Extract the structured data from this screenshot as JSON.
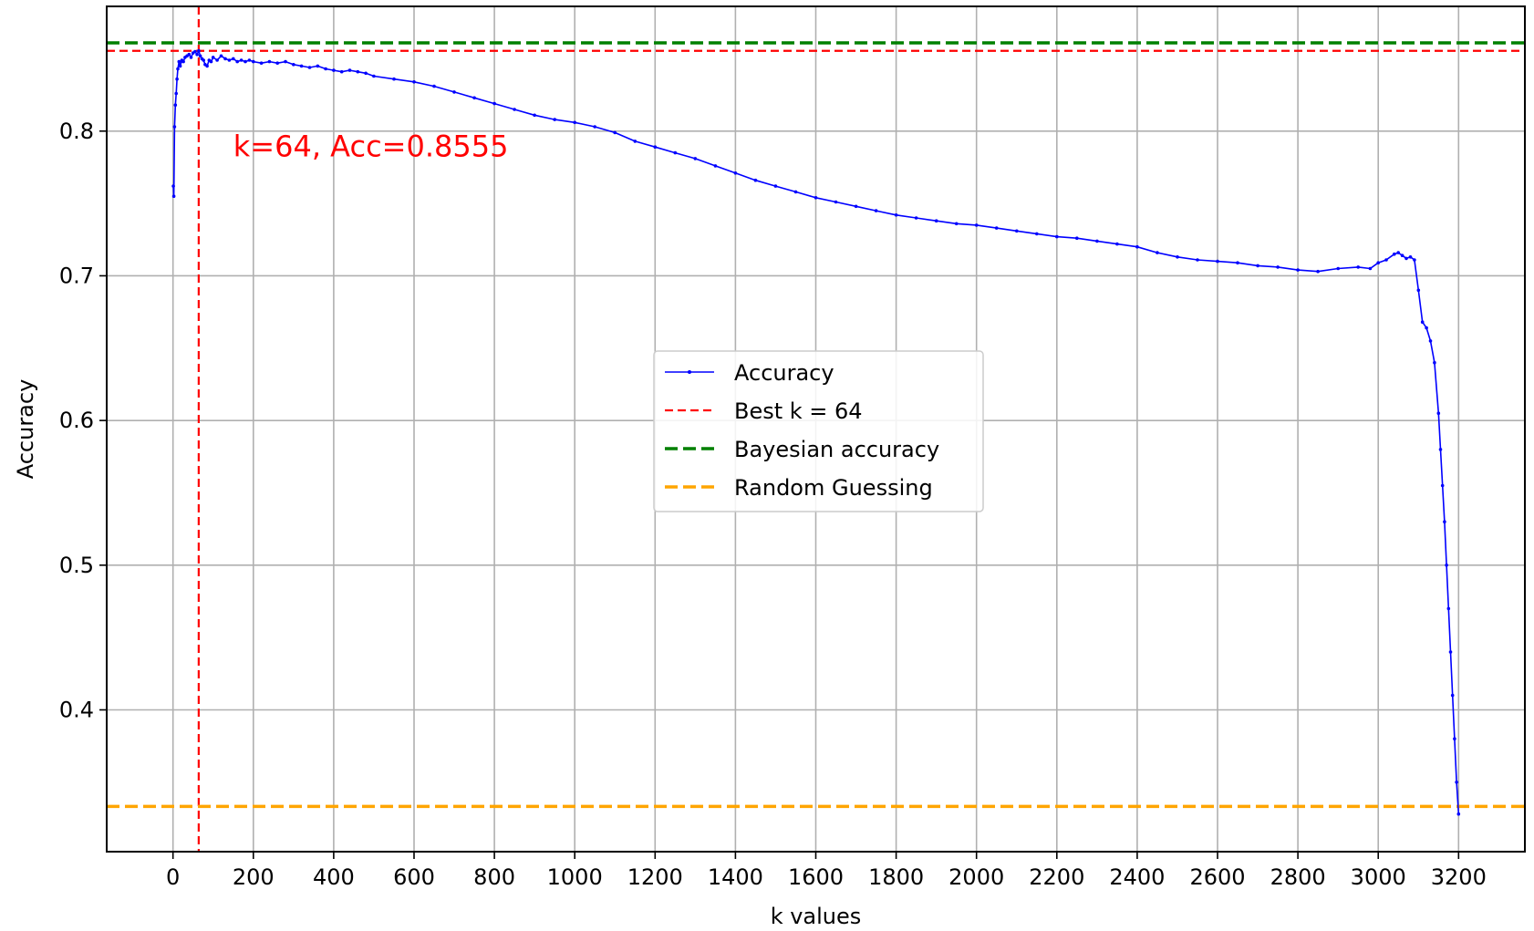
{
  "chart_data": {
    "type": "line",
    "title": "",
    "xlabel": "k values",
    "ylabel": "Accuracy",
    "xlim": [
      -165,
      3365
    ],
    "ylim": [
      0.302,
      0.8862
    ],
    "xticks": [
      0,
      200,
      400,
      600,
      800,
      1000,
      1200,
      1400,
      1600,
      1800,
      2000,
      2200,
      2400,
      2600,
      2800,
      3000,
      3200
    ],
    "yticks": [
      0.4,
      0.5,
      0.6,
      0.7,
      0.8
    ],
    "ytick_labels": [
      "0.4",
      "0.5",
      "0.6",
      "0.7",
      "0.8"
    ],
    "grid": true,
    "legend_position": "center",
    "series": [
      {
        "name": "Accuracy",
        "color": "#0000ff",
        "marker": "dot",
        "x": [
          1,
          2,
          4,
          6,
          8,
          10,
          12,
          15,
          18,
          22,
          26,
          30,
          35,
          40,
          45,
          50,
          55,
          60,
          64,
          68,
          72,
          76,
          80,
          85,
          90,
          95,
          100,
          110,
          120,
          130,
          140,
          150,
          160,
          170,
          180,
          190,
          200,
          220,
          240,
          260,
          280,
          300,
          320,
          340,
          360,
          380,
          400,
          420,
          440,
          460,
          480,
          500,
          550,
          600,
          650,
          700,
          750,
          800,
          850,
          900,
          950,
          1000,
          1050,
          1100,
          1150,
          1200,
          1250,
          1300,
          1350,
          1400,
          1450,
          1500,
          1550,
          1600,
          1650,
          1700,
          1750,
          1800,
          1850,
          1900,
          1950,
          2000,
          2050,
          2100,
          2150,
          2200,
          2250,
          2300,
          2350,
          2400,
          2450,
          2500,
          2550,
          2600,
          2650,
          2700,
          2750,
          2800,
          2850,
          2900,
          2950,
          2980,
          3000,
          3020,
          3040,
          3050,
          3060,
          3070,
          3080,
          3090,
          3100,
          3110,
          3120,
          3130,
          3140,
          3150,
          3155,
          3160,
          3165,
          3170,
          3175,
          3180,
          3185,
          3190,
          3195,
          3200
        ],
        "y": [
          0.762,
          0.755,
          0.803,
          0.818,
          0.826,
          0.836,
          0.843,
          0.848,
          0.845,
          0.849,
          0.848,
          0.851,
          0.852,
          0.853,
          0.851,
          0.854,
          0.855,
          0.853,
          0.8555,
          0.852,
          0.85,
          0.849,
          0.846,
          0.845,
          0.849,
          0.848,
          0.851,
          0.849,
          0.852,
          0.85,
          0.849,
          0.85,
          0.848,
          0.849,
          0.848,
          0.849,
          0.848,
          0.847,
          0.848,
          0.847,
          0.848,
          0.846,
          0.845,
          0.844,
          0.845,
          0.843,
          0.842,
          0.841,
          0.842,
          0.841,
          0.84,
          0.838,
          0.836,
          0.834,
          0.831,
          0.827,
          0.823,
          0.819,
          0.815,
          0.811,
          0.808,
          0.806,
          0.803,
          0.799,
          0.793,
          0.789,
          0.785,
          0.781,
          0.776,
          0.771,
          0.766,
          0.762,
          0.758,
          0.754,
          0.751,
          0.748,
          0.745,
          0.742,
          0.74,
          0.738,
          0.736,
          0.735,
          0.733,
          0.731,
          0.729,
          0.727,
          0.726,
          0.724,
          0.722,
          0.72,
          0.716,
          0.713,
          0.711,
          0.71,
          0.709,
          0.707,
          0.706,
          0.704,
          0.703,
          0.705,
          0.706,
          0.705,
          0.709,
          0.711,
          0.715,
          0.716,
          0.714,
          0.712,
          0.713,
          0.711,
          0.69,
          0.668,
          0.664,
          0.655,
          0.64,
          0.605,
          0.58,
          0.555,
          0.53,
          0.5,
          0.47,
          0.44,
          0.41,
          0.38,
          0.35,
          0.328
        ]
      },
      {
        "name": "Best k = 64",
        "color": "#ff0000",
        "style": "dashed",
        "vline_x": 64,
        "hline_y": 0.8555
      },
      {
        "name": "Bayesian accuracy",
        "color": "#008000",
        "style": "dashed",
        "hline_y": 0.861
      },
      {
        "name": "Random Guessing",
        "color": "#ffa500",
        "style": "dashed",
        "hline_y": 0.3333
      }
    ],
    "annotations": [
      {
        "text": "k=64, Acc=0.8555",
        "x": 150,
        "y": 0.79,
        "color": "#ff0000"
      }
    ]
  }
}
